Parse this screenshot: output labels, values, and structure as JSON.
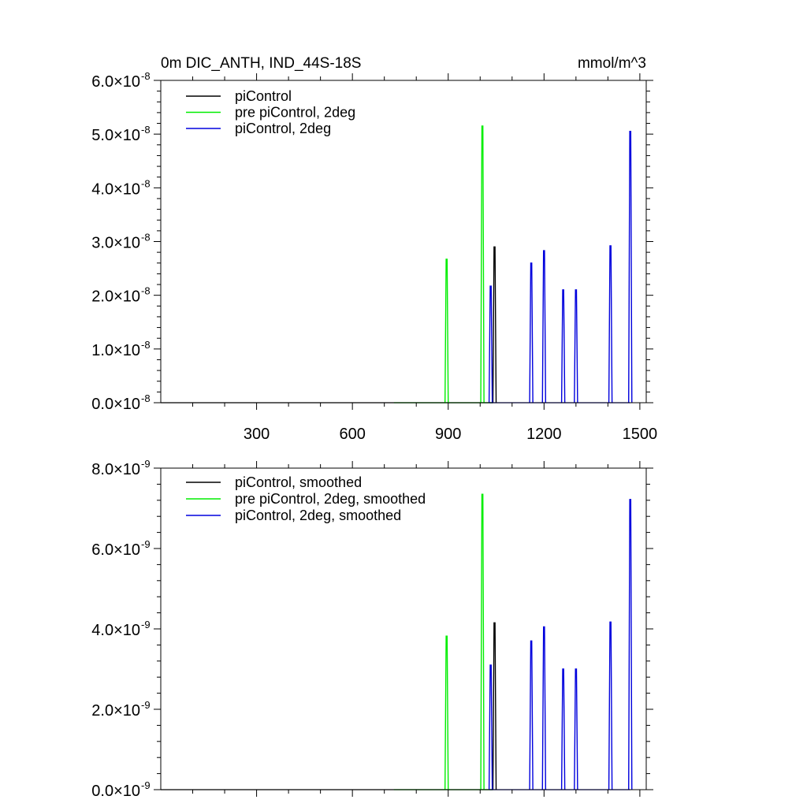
{
  "chart_data": [
    {
      "type": "line",
      "title_left": "0m DIC_ANTH, IND_44S-18S",
      "title_right": "mmol/m^3",
      "xlim": [
        0,
        1520
      ],
      "ylim": [
        0,
        6e-08
      ],
      "x_ticks": [
        300,
        600,
        900,
        1200,
        1500
      ],
      "x_tick_labels": [
        "300",
        "600",
        "900",
        "1200",
        "1500"
      ],
      "y_ticks": [
        0,
        1e-08,
        2e-08,
        3e-08,
        4e-08,
        5e-08,
        6e-08
      ],
      "y_tick_mantissas": [
        "0.0",
        "1.0",
        "2.0",
        "3.0",
        "4.0",
        "5.0",
        "6.0"
      ],
      "y_tick_exponent": "-8",
      "legend_placement": "top-left",
      "series": [
        {
          "name": "piControl",
          "color": "#000000",
          "baseline": [
            0,
            1040
          ],
          "spikes": [
            {
              "x": 1045,
              "y": 2.9e-08
            }
          ]
        },
        {
          "name": "pre piControl, 2deg",
          "color": "#00ee00",
          "baseline": [
            730,
            1040
          ],
          "spikes": [
            {
              "x": 895,
              "y": 2.67e-08
            },
            {
              "x": 1007,
              "y": 5.15e-08
            }
          ]
        },
        {
          "name": "piControl, 2deg",
          "color": "#0000dd",
          "baseline": [
            1030,
            1470
          ],
          "spikes": [
            {
              "x": 1033,
              "y": 2.17e-08
            },
            {
              "x": 1160,
              "y": 2.6e-08
            },
            {
              "x": 1200,
              "y": 2.83e-08
            },
            {
              "x": 1260,
              "y": 2.1e-08
            },
            {
              "x": 1300,
              "y": 2.1e-08
            },
            {
              "x": 1408,
              "y": 2.92e-08
            },
            {
              "x": 1470,
              "y": 5.05e-08
            }
          ]
        }
      ]
    },
    {
      "type": "line",
      "xlim": [
        0,
        1520
      ],
      "ylim": [
        0,
        8e-09
      ],
      "x_ticks": [
        300,
        600,
        900,
        1200,
        1500
      ],
      "y_ticks": [
        0,
        2e-09,
        4e-09,
        6e-09,
        8e-09
      ],
      "y_tick_mantissas": [
        "0.0",
        "2.0",
        "4.0",
        "6.0",
        "8.0"
      ],
      "y_tick_exponent": "-9",
      "legend_placement": "top-left",
      "series": [
        {
          "name": "piControl, smoothed",
          "color": "#000000",
          "baseline": [
            0,
            1040
          ],
          "spikes": [
            {
              "x": 1045,
              "y": 4.15e-09
            }
          ]
        },
        {
          "name": "pre piControl, 2deg, smoothed",
          "color": "#00ee00",
          "baseline": [
            730,
            1040
          ],
          "spikes": [
            {
              "x": 895,
              "y": 3.82e-09
            },
            {
              "x": 1007,
              "y": 7.35e-09
            }
          ]
        },
        {
          "name": "piControl, 2deg, smoothed",
          "color": "#0000dd",
          "baseline": [
            1030,
            1470
          ],
          "spikes": [
            {
              "x": 1033,
              "y": 3.1e-09
            },
            {
              "x": 1160,
              "y": 3.7e-09
            },
            {
              "x": 1200,
              "y": 4.05e-09
            },
            {
              "x": 1260,
              "y": 3e-09
            },
            {
              "x": 1300,
              "y": 3e-09
            },
            {
              "x": 1408,
              "y": 4.17e-09
            },
            {
              "x": 1470,
              "y": 7.22e-09
            }
          ]
        }
      ]
    }
  ]
}
